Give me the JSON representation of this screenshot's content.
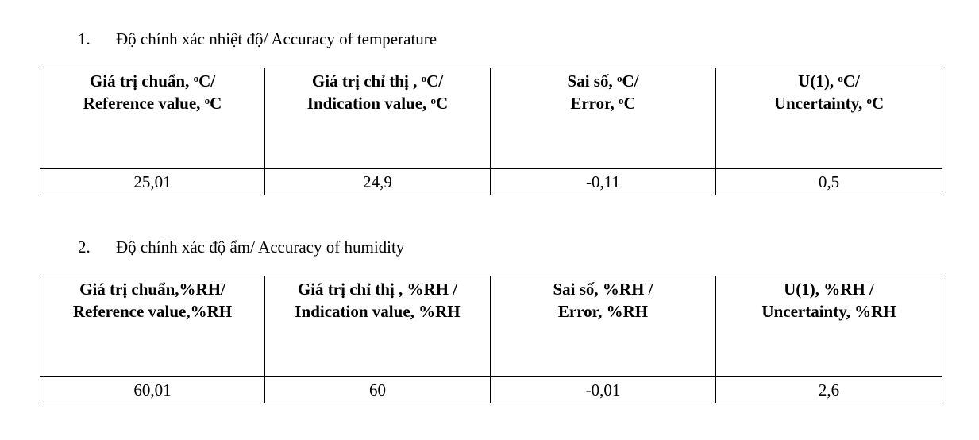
{
  "sections": [
    {
      "number": "1.",
      "title": "Độ chính xác nhiệt độ/ Accuracy of temperature",
      "headers": [
        [
          [
            "Giá trị chuẩn, ",
            {
              "sup": "o"
            },
            "C/"
          ],
          [
            "Reference value, ",
            {
              "sup": "o"
            },
            "C"
          ]
        ],
        [
          [
            "Giá trị chỉ thị , ",
            {
              "sup": "o"
            },
            "C/"
          ],
          [
            "Indication value, ",
            {
              "sup": "o"
            },
            "C"
          ]
        ],
        [
          [
            "Sai số, ",
            {
              "sup": "o"
            },
            "C/"
          ],
          [
            "Error, ",
            {
              "sup": "o"
            },
            "C"
          ]
        ],
        [
          [
            "U(1), ",
            {
              "sup": "o"
            },
            "C/"
          ],
          [
            "Uncertainty, ",
            {
              "sup": "o"
            },
            "C"
          ]
        ]
      ],
      "row": [
        "25,01",
        "24,9",
        "-0,11",
        "0,5"
      ]
    },
    {
      "number": "2.",
      "title": "Độ chính xác độ ẩm/ Accuracy of humidity",
      "headers": [
        [
          [
            "Giá trị chuẩn,%RH/"
          ],
          [
            "Reference value,%RH"
          ]
        ],
        [
          [
            "Giá trị chỉ thị , %RH /"
          ],
          [
            "Indication value, %RH"
          ]
        ],
        [
          [
            "Sai số, %RH /"
          ],
          [
            "Error, %RH"
          ]
        ],
        [
          [
            "U(1), %RH /"
          ],
          [
            "Uncertainty, %RH"
          ]
        ]
      ],
      "row": [
        "60,01",
        "60",
        "-0,01",
        "2,6"
      ]
    }
  ]
}
